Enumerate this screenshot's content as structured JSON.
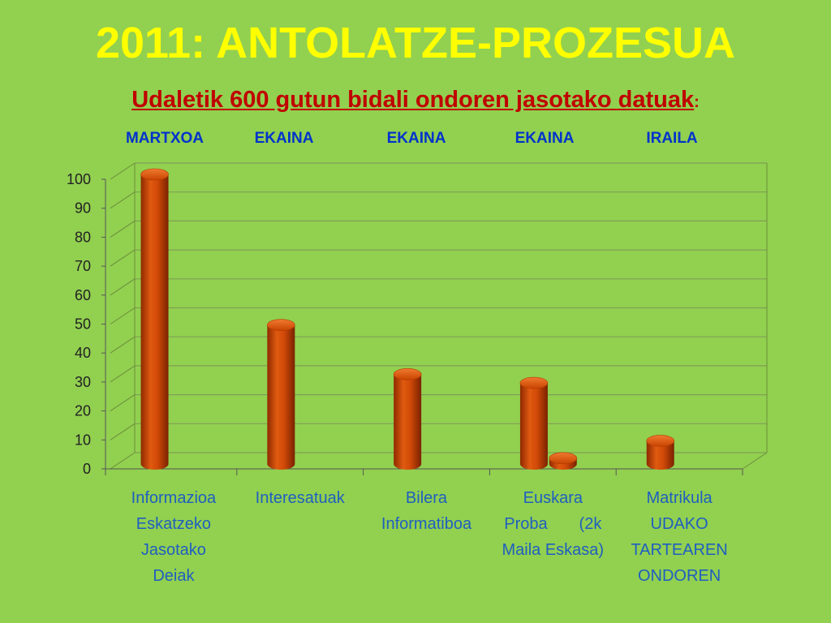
{
  "title": "2011: ANTOLATZE-PROZESUA",
  "subtitle": "Udaletik 600 gutun bidali ondoren jasotako datuak",
  "subtitle_colon": ":",
  "months": [
    "MARTXOA",
    "EKAINA",
    "EKAINA",
    "EKAINA",
    "IRAILA"
  ],
  "colors": {
    "background": "#92d050",
    "title": "#ffff00",
    "subtitle": "#c00000",
    "month": "#0033cc",
    "category_label": "#1f5fbf",
    "bar": "#d24a08"
  },
  "chart_data": {
    "type": "bar",
    "style": "3d-cylinder",
    "categories": [
      "Informazioa Eskatzeko Jasotako Deiak",
      "Interesatuak",
      "Bilera Informatiboa",
      "Euskara Proba (2k Maila Eskasa)",
      "Matrikula UDAKO TARTEAREN ONDOREN"
    ],
    "category_lines": [
      [
        "Informazioa",
        "Eskatzeko",
        "Jasotako",
        "Deiak"
      ],
      [
        "Interesatuak"
      ],
      [
        "Bilera",
        "Informatiboa"
      ],
      [
        "Euskara",
        "Proba       (2k",
        "Maila Eskasa)"
      ],
      [
        "Matrikula",
        "UDAKO",
        "TARTEAREN",
        "ONDOREN"
      ]
    ],
    "series": [
      {
        "values": [
          100,
          48,
          31,
          28,
          8
        ]
      },
      {
        "values": [
          null,
          null,
          null,
          2,
          null
        ]
      }
    ],
    "ylim": [
      0,
      100
    ],
    "yticks": [
      0,
      10,
      20,
      30,
      40,
      50,
      60,
      70,
      80,
      90,
      100
    ],
    "grid": true,
    "legend": "none"
  }
}
